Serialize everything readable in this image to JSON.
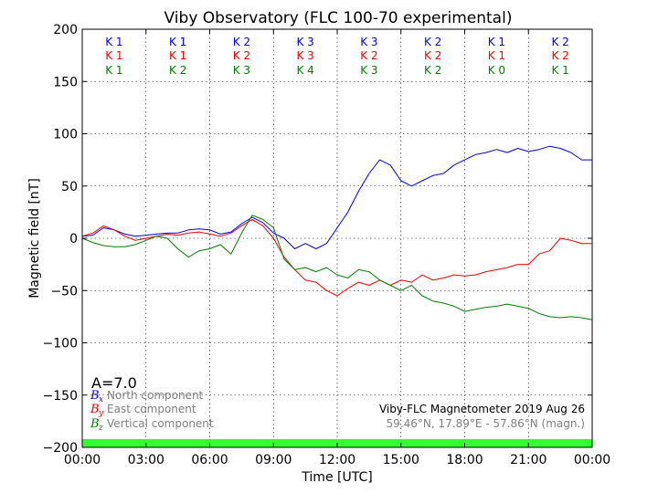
{
  "chart_data": {
    "type": "line",
    "title": "Viby Observatory (FLC 100-70 experimental)",
    "xlabel": "Time [UTC]",
    "ylabel": "Magnetic field [nT]",
    "xlim": [
      0,
      24
    ],
    "ylim": [
      -200,
      200
    ],
    "grid": true,
    "x_tick_labels": [
      "00:00",
      "03:00",
      "06:00",
      "09:00",
      "12:00",
      "15:00",
      "18:00",
      "21:00",
      "00:00"
    ],
    "y_ticks": [
      200,
      150,
      100,
      50,
      0,
      -50,
      -100,
      -150,
      -200
    ],
    "y_tick_labels": [
      "200",
      "150",
      "100",
      "50",
      "0",
      "−50",
      "−100",
      "−150",
      "−200"
    ],
    "k_index_rows": [
      {
        "component": "Bx",
        "color": "#0000ff",
        "labels": [
          "K 1",
          "K 1",
          "K 2",
          "K 3",
          "K 3",
          "K 2",
          "K 1",
          "K 2"
        ]
      },
      {
        "component": "By",
        "color": "#ff0000",
        "labels": [
          "K 1",
          "K 1",
          "K 2",
          "K 3",
          "K 2",
          "K 2",
          "K 1",
          "K 2"
        ]
      },
      {
        "component": "Bz",
        "color": "#008000",
        "labels": [
          "K 1",
          "K 2",
          "K 3",
          "K 4",
          "K 3",
          "K 2",
          "K 0",
          "K 1"
        ]
      }
    ],
    "a_index": "A=7.0",
    "series": [
      {
        "name": "North component",
        "symbol": "B",
        "subscript": "x",
        "color": "#0000ff",
        "points": [
          [
            0,
            2
          ],
          [
            0.5,
            3
          ],
          [
            1,
            10
          ],
          [
            1.5,
            8
          ],
          [
            2,
            4
          ],
          [
            2.5,
            2
          ],
          [
            3,
            3
          ],
          [
            3.5,
            4
          ],
          [
            4,
            5
          ],
          [
            4.5,
            5
          ],
          [
            5,
            8
          ],
          [
            5.5,
            9
          ],
          [
            6,
            8
          ],
          [
            6.5,
            4
          ],
          [
            7,
            6
          ],
          [
            7.5,
            14
          ],
          [
            8,
            20
          ],
          [
            8.5,
            15
          ],
          [
            9,
            5
          ],
          [
            9.5,
            0
          ],
          [
            10,
            -10
          ],
          [
            10.5,
            -5
          ],
          [
            11,
            -10
          ],
          [
            11.5,
            -5
          ],
          [
            12,
            10
          ],
          [
            12.5,
            25
          ],
          [
            13,
            45
          ],
          [
            13.5,
            62
          ],
          [
            14,
            75
          ],
          [
            14.5,
            70
          ],
          [
            15,
            55
          ],
          [
            15.5,
            50
          ],
          [
            16,
            55
          ],
          [
            16.5,
            60
          ],
          [
            17,
            62
          ],
          [
            17.5,
            70
          ],
          [
            18,
            75
          ],
          [
            18.5,
            80
          ],
          [
            19,
            82
          ],
          [
            19.5,
            85
          ],
          [
            20,
            82
          ],
          [
            20.5,
            86
          ],
          [
            21,
            83
          ],
          [
            21.5,
            85
          ],
          [
            22,
            88
          ],
          [
            22.5,
            86
          ],
          [
            23,
            82
          ],
          [
            23.5,
            75
          ],
          [
            24,
            75
          ]
        ]
      },
      {
        "name": "East component",
        "symbol": "B",
        "subscript": "y",
        "color": "#ff0000",
        "points": [
          [
            0,
            2
          ],
          [
            0.5,
            5
          ],
          [
            1,
            12
          ],
          [
            1.5,
            8
          ],
          [
            2,
            2
          ],
          [
            2.5,
            -2
          ],
          [
            3,
            0
          ],
          [
            3.5,
            2
          ],
          [
            4,
            4
          ],
          [
            4.5,
            3
          ],
          [
            5,
            5
          ],
          [
            5.5,
            6
          ],
          [
            6,
            4
          ],
          [
            6.5,
            2
          ],
          [
            7,
            5
          ],
          [
            7.5,
            12
          ],
          [
            8,
            18
          ],
          [
            8.5,
            12
          ],
          [
            9,
            0
          ],
          [
            9.5,
            -18
          ],
          [
            10,
            -30
          ],
          [
            10.5,
            -40
          ],
          [
            11,
            -42
          ],
          [
            11.5,
            -50
          ],
          [
            12,
            -55
          ],
          [
            12.5,
            -48
          ],
          [
            13,
            -42
          ],
          [
            13.5,
            -45
          ],
          [
            14,
            -40
          ],
          [
            14.5,
            -45
          ],
          [
            15,
            -40
          ],
          [
            15.5,
            -42
          ],
          [
            16,
            -35
          ],
          [
            16.5,
            -40
          ],
          [
            17,
            -38
          ],
          [
            17.5,
            -35
          ],
          [
            18,
            -36
          ],
          [
            18.5,
            -35
          ],
          [
            19,
            -32
          ],
          [
            19.5,
            -30
          ],
          [
            20,
            -28
          ],
          [
            20.5,
            -25
          ],
          [
            21,
            -25
          ],
          [
            21.5,
            -15
          ],
          [
            22,
            -12
          ],
          [
            22.5,
            0
          ],
          [
            23,
            -2
          ],
          [
            23.5,
            -5
          ],
          [
            24,
            -5
          ]
        ]
      },
      {
        "name": "Vertical component",
        "symbol": "B",
        "subscript": "z",
        "color": "#008000",
        "points": [
          [
            0,
            0
          ],
          [
            0.5,
            -4
          ],
          [
            1,
            -7
          ],
          [
            1.5,
            -8
          ],
          [
            2,
            -8
          ],
          [
            2.5,
            -6
          ],
          [
            3,
            -2
          ],
          [
            3.5,
            2
          ],
          [
            4,
            0
          ],
          [
            4.5,
            -10
          ],
          [
            5,
            -18
          ],
          [
            5.5,
            -12
          ],
          [
            6,
            -10
          ],
          [
            6.5,
            -6
          ],
          [
            7,
            -15
          ],
          [
            7.5,
            5
          ],
          [
            8,
            22
          ],
          [
            8.5,
            18
          ],
          [
            9,
            10
          ],
          [
            9.5,
            -20
          ],
          [
            10,
            -30
          ],
          [
            10.5,
            -28
          ],
          [
            11,
            -32
          ],
          [
            11.5,
            -28
          ],
          [
            12,
            -35
          ],
          [
            12.5,
            -38
          ],
          [
            13,
            -30
          ],
          [
            13.5,
            -32
          ],
          [
            14,
            -40
          ],
          [
            14.5,
            -45
          ],
          [
            15,
            -50
          ],
          [
            15.5,
            -45
          ],
          [
            16,
            -55
          ],
          [
            16.5,
            -60
          ],
          [
            17,
            -62
          ],
          [
            17.5,
            -65
          ],
          [
            18,
            -70
          ],
          [
            18.5,
            -68
          ],
          [
            19,
            -66
          ],
          [
            19.5,
            -65
          ],
          [
            20,
            -63
          ],
          [
            20.5,
            -65
          ],
          [
            21,
            -67
          ],
          [
            21.5,
            -72
          ],
          [
            22,
            -75
          ],
          [
            22.5,
            -76
          ],
          [
            23,
            -75
          ],
          [
            23.5,
            -76
          ],
          [
            24,
            -78
          ]
        ]
      }
    ],
    "info_line1": "Viby-FLC Magnetometer 2019 Aug 26",
    "info_line2": "59.46°N, 17.89°E - 57.86°N (magn.)",
    "status_bar_color": "#33ff33"
  }
}
